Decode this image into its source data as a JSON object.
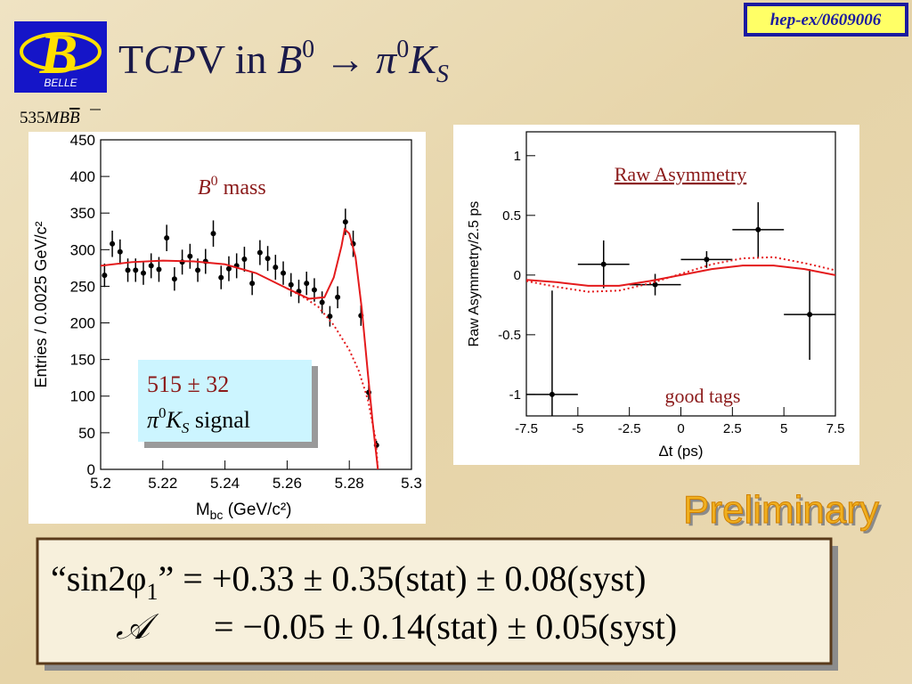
{
  "slide": {
    "tag": "hep-ex/0609006",
    "logo": {
      "letter": "B",
      "name": "BELLE"
    },
    "title_parts": [
      "T",
      "CP",
      "V in ",
      "B",
      "0",
      " → ",
      "π",
      "0",
      "K",
      "S"
    ],
    "lumi_parts": [
      "535",
      "MB",
      "B"
    ],
    "mass_label_parts": [
      "B",
      "0",
      " mass"
    ],
    "signal_box": {
      "count": "515 ± 32",
      "parts": [
        "π",
        "0",
        "K",
        "S",
        " signal"
      ]
    },
    "asym_title": "Raw Asymmetry",
    "tags_label": "good tags",
    "preliminary": "Preliminary",
    "result": {
      "line1": [
        "“sin2φ",
        "1",
        "” = +0.33 ± 0.35(stat) ± 0.08(syst)"
      ],
      "line2": [
        "𝒜",
        "= −0.05 ± 0.14(stat) ± 0.05(syst)"
      ]
    }
  },
  "chart_data": [
    {
      "type": "scatter",
      "x_label_parts": [
        "M",
        "bc",
        " (GeV/c²)"
      ],
      "y_label": "Entries / 0.0025 GeV/c²",
      "xlim": [
        5.2,
        5.3
      ],
      "xticks": [
        5.2,
        5.22,
        5.24,
        5.26,
        5.28,
        5.3
      ],
      "ylim": [
        0,
        450
      ],
      "yticks": [
        0,
        50,
        100,
        150,
        200,
        250,
        300,
        350,
        400,
        450
      ],
      "series": [
        {
          "color": "#000000",
          "x": [
            5.20125,
            5.20375,
            5.20625,
            5.20875,
            5.21125,
            5.21375,
            5.21625,
            5.21875,
            5.22125,
            5.22375,
            5.22625,
            5.22875,
            5.23125,
            5.23375,
            5.23625,
            5.23875,
            5.24125,
            5.24375,
            5.24625,
            5.24875,
            5.25125,
            5.25375,
            5.25625,
            5.25875,
            5.26125,
            5.26375,
            5.26625,
            5.26875,
            5.27125,
            5.27375,
            5.27625,
            5.27875,
            5.28125,
            5.28375,
            5.28625,
            5.28875
          ],
          "values": [
            265,
            308,
            297,
            272,
            272,
            268,
            278,
            273,
            316,
            260,
            283,
            291,
            272,
            284,
            322,
            262,
            274,
            278,
            287,
            254,
            296,
            288,
            276,
            268,
            252,
            243,
            254,
            245,
            228,
            209,
            235,
            338,
            308,
            210,
            105,
            33
          ],
          "errors": [
            16,
            18,
            17,
            16,
            16,
            16,
            17,
            17,
            18,
            16,
            17,
            17,
            16,
            17,
            18,
            16,
            17,
            17,
            17,
            16,
            17,
            17,
            17,
            16,
            16,
            16,
            16,
            16,
            15,
            14,
            15,
            18,
            18,
            14,
            10,
            6
          ]
        },
        {
          "type": "line",
          "color": "#e41a1c",
          "dash": false,
          "x": [
            5.2,
            5.21,
            5.22,
            5.23,
            5.24,
            5.25,
            5.26,
            5.267,
            5.272,
            5.275,
            5.2775,
            5.2785,
            5.28,
            5.282,
            5.284,
            5.286,
            5.2875,
            5.2892
          ],
          "values": [
            278,
            283,
            285,
            284,
            280,
            268,
            247,
            233,
            235,
            262,
            305,
            328,
            322,
            290,
            220,
            130,
            65,
            0
          ]
        },
        {
          "type": "line",
          "color": "#e41a1c",
          "dash": true,
          "x": [
            5.26,
            5.265,
            5.27,
            5.275,
            5.28,
            5.283,
            5.286,
            5.2885,
            5.2892
          ],
          "values": [
            247,
            236,
            222,
            197,
            163,
            135,
            95,
            40,
            0
          ]
        }
      ]
    },
    {
      "type": "scatter",
      "x_label": "Δt (ps)",
      "y_label": "Raw Asymmetry/2.5 ps",
      "xlim": [
        -7.5,
        7.5
      ],
      "xticks": [
        -7.5,
        -5,
        -2.5,
        0,
        2.5,
        5,
        7.5
      ],
      "ylim": [
        -1.18,
        1.2
      ],
      "yticks": [
        -1,
        -0.5,
        0,
        0.5,
        1
      ],
      "series": [
        {
          "color": "#000000",
          "x": [
            -6.25,
            -3.75,
            -1.25,
            1.25,
            3.75,
            6.25
          ],
          "xerrors": [
            1.25,
            1.25,
            1.25,
            1.25,
            1.25,
            1.25
          ],
          "values": [
            -1,
            0.09,
            -0.08,
            0.13,
            0.38,
            -0.33
          ],
          "errors": [
            0.87,
            0.2,
            0.09,
            0.07,
            0.23,
            0.38
          ]
        },
        {
          "type": "line",
          "color": "#e41a1c",
          "dash": false,
          "x": [
            -7.5,
            -6,
            -4.5,
            -3,
            -1.5,
            0,
            1.5,
            3,
            4.5,
            6,
            7.5
          ],
          "values": [
            -0.04,
            -0.06,
            -0.09,
            -0.09,
            -0.05,
            0,
            0.05,
            0.08,
            0.08,
            0.05,
            0
          ]
        },
        {
          "type": "line",
          "color": "#e41a1c",
          "dash": true,
          "x": [
            -7.5,
            -6,
            -4.5,
            -3,
            -1.5,
            0,
            1.5,
            3,
            4.5,
            6,
            7.5
          ],
          "values": [
            -0.05,
            -0.1,
            -0.14,
            -0.13,
            -0.07,
            0.01,
            0.09,
            0.14,
            0.15,
            0.1,
            0.04
          ]
        }
      ]
    }
  ]
}
